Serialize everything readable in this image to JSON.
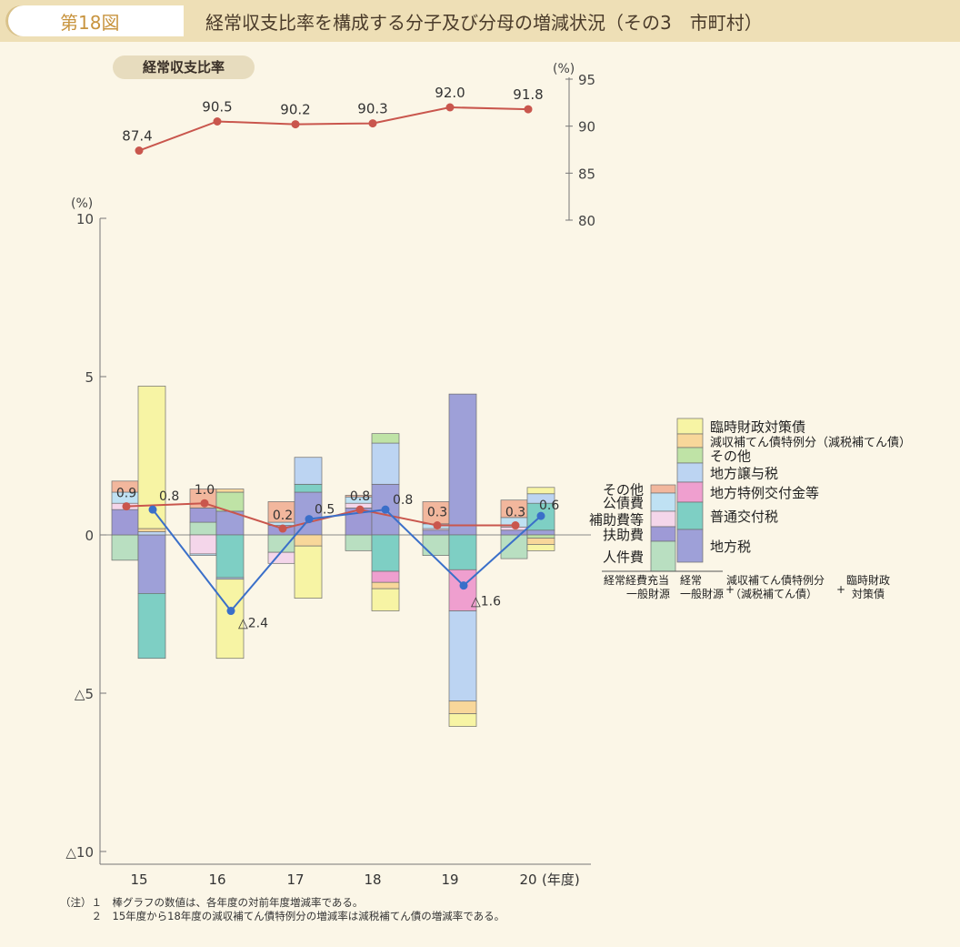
{
  "header": {
    "fig_num": "第18図",
    "title": "経常収支比率を構成する分子及び分母の増減状況（その3　市町村）"
  },
  "top_chart_label": "経常収支比率",
  "top_unit": "(%)",
  "main_unit": "(%)",
  "x_unit": "(年度)",
  "colors": {
    "line_red": "#c9564d",
    "line_blue": "#3a6fc9",
    "axis": "#777777"
  },
  "chart_data": [
    {
      "type": "line",
      "title": "経常収支比率",
      "ylabel": "(%)",
      "ylim": [
        80,
        95
      ],
      "yticks": [
        80,
        85,
        90,
        95
      ],
      "categories": [
        "15",
        "16",
        "17",
        "18",
        "19",
        "20"
      ],
      "values": [
        87.4,
        90.5,
        90.2,
        90.3,
        92.0,
        91.8
      ],
      "value_labels": [
        "87.4",
        "90.5",
        "90.2",
        "90.3",
        "92.0",
        "91.8"
      ]
    },
    {
      "type": "bar",
      "ylabel": "(%)",
      "ylim": [
        -10,
        10
      ],
      "yticks": [
        10,
        5,
        0,
        -5,
        -10
      ],
      "ytick_labels": [
        "10",
        "5",
        "0",
        "△5",
        "△10"
      ],
      "xlabel": "(年度)",
      "categories": [
        "15",
        "16",
        "17",
        "18",
        "19",
        "20"
      ],
      "numerator_segments": [
        [
          [
            "人件費",
            -0.8
          ],
          [
            "扶助費",
            0.8
          ],
          [
            "補助費等",
            0.2
          ],
          [
            "公債費",
            0.35
          ],
          [
            "その他",
            0.35
          ]
        ],
        [
          [
            "人件費",
            0.4
          ],
          [
            "扶助費",
            0.45
          ],
          [
            "補助費等",
            -0.6
          ],
          [
            "公債費",
            -0.05
          ],
          [
            "その他",
            0.6
          ]
        ],
        [
          [
            "人件費",
            -0.55
          ],
          [
            "扶助費",
            0.3
          ],
          [
            "補助費等",
            -0.35
          ],
          [
            "公債費",
            0.1
          ],
          [
            "その他",
            0.65
          ]
        ],
        [
          [
            "人件費",
            -0.5
          ],
          [
            "扶助費",
            0.85
          ],
          [
            "補助費等",
            0.15
          ],
          [
            "公債費",
            0.2
          ],
          [
            "その他",
            0.05
          ]
        ],
        [
          [
            "人件費",
            -0.65
          ],
          [
            "扶助費",
            0.15
          ],
          [
            "補助費等",
            0.05
          ],
          [
            "公債費",
            0.15
          ],
          [
            "その他",
            0.7
          ]
        ],
        [
          [
            "人件費",
            -0.75
          ],
          [
            "扶助費",
            0.15
          ],
          [
            "補助費等",
            0.1
          ],
          [
            "公債費",
            0.3
          ],
          [
            "その他",
            0.55
          ]
        ]
      ],
      "denominator_segments": [
        [
          [
            "地方税",
            -1.85
          ],
          [
            "普通交付税",
            -2.05
          ],
          [
            "地方譲与税",
            0.1
          ],
          [
            "減収補てん債特例分(減税補てん債)",
            0.1
          ],
          [
            "臨時財政対策債",
            4.5
          ]
        ],
        [
          [
            "地方税",
            0.75
          ],
          [
            "普通交付税",
            -1.35
          ],
          [
            "地方特例交付金等",
            0.0
          ],
          [
            "地方譲与税",
            -0.05
          ],
          [
            "その他",
            0.6
          ],
          [
            "減収補てん債特例分(減税補てん債)",
            0.1
          ],
          [
            "臨時財政対策債",
            -2.5
          ]
        ],
        [
          [
            "地方税",
            1.35
          ],
          [
            "普通交付税",
            0.25
          ],
          [
            "地方譲与税",
            0.85
          ],
          [
            "減収補てん債特例分(減税補てん債)",
            -0.35
          ],
          [
            "臨時財政対策債",
            -1.65
          ]
        ],
        [
          [
            "地方税",
            1.6
          ],
          [
            "普通交付税",
            -1.15
          ],
          [
            "地方特例交付金等",
            -0.35
          ],
          [
            "地方譲与税",
            1.3
          ],
          [
            "その他",
            0.3
          ],
          [
            "減収補てん債特例分(減税補てん債)",
            -0.2
          ],
          [
            "臨時財政対策債",
            -0.7
          ]
        ],
        [
          [
            "地方税",
            4.45
          ],
          [
            "普通交付税",
            -1.1
          ],
          [
            "地方特例交付金等",
            -1.3
          ],
          [
            "地方譲与税",
            -2.85
          ],
          [
            "減収補てん債特例分(減税補てん債)",
            -0.4
          ],
          [
            "臨時財政対策債",
            -0.4
          ]
        ],
        [
          [
            "地方税",
            0.15
          ],
          [
            "普通交付税",
            0.85
          ],
          [
            "地方譲与税",
            0.3
          ],
          [
            "その他",
            -0.1
          ],
          [
            "減収補てん債特例分(減税補てん債)",
            -0.2
          ],
          [
            "臨時財政対策債",
            0.2
          ],
          [
            "臨時財政対策債",
            -0.2
          ]
        ]
      ],
      "series": [
        {
          "name": "経常経費充当一般財源",
          "values": [
            0.9,
            1.0,
            0.2,
            0.8,
            0.3,
            0.3
          ],
          "labels": [
            "0.9",
            "1.0",
            "0.2",
            "0.8",
            "0.3",
            "0.3"
          ]
        },
        {
          "name": "経常一般財源＋減収補てん債特例分(減税補てん債)＋臨時財政対策債",
          "values": [
            0.8,
            -2.4,
            0.5,
            0.8,
            -1.6,
            0.6
          ],
          "labels": [
            "0.8",
            "△2.4",
            "0.5",
            "0.8",
            "△1.6",
            "0.6"
          ]
        }
      ],
      "legend_numerator": [
        "その他",
        "公債費",
        "補助費等",
        "扶助費",
        "人件費"
      ],
      "legend_denominator": [
        "臨時財政対策債",
        "減収補てん債特例分（減税補てん債）",
        "その他",
        "地方譲与税",
        "地方特例交付金等",
        "普通交付税",
        "地方税"
      ],
      "legend_bottom": [
        "経常経費充当",
        "一般財源",
        "経常",
        "一般財源",
        "+",
        "減収補てん債特例分",
        "（減税補てん債）",
        "+",
        "臨時財政",
        "対策債"
      ]
    }
  ],
  "legend_colors": {
    "人件費": "#b9dfc1",
    "扶助費": "#9e9ad6",
    "補助費等": "#f4d6ea",
    "公債費": "#bfe1f3",
    "その他_num": "#f2b79d",
    "地方税": "#9ea0d8",
    "普通交付税": "#7ecfc4",
    "地方特例交付金等": "#ef9fcf",
    "地方譲与税": "#bcd4f2",
    "その他_den": "#bfe3a6",
    "減収補てん債特例分": "#f8d79a",
    "臨時財政対策債": "#f7f4a4"
  },
  "notes": [
    "（注）１　棒グラフの数値は、各年度の対前年度増減率である。",
    "　　　２　15年度から18年度の減収補てん債特例分の増減率は減税補てん債の増減率である。"
  ]
}
